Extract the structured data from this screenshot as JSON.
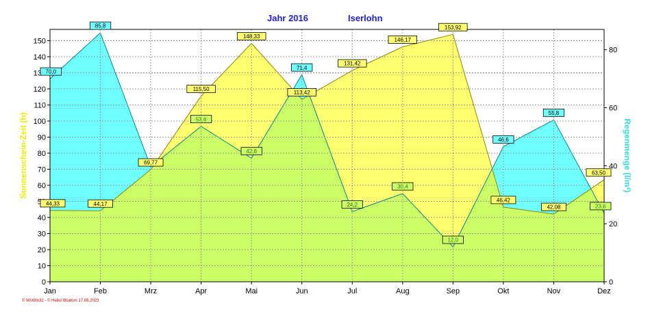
{
  "header": {
    "year": "Jahr  2016",
    "place": "Iserlohn"
  },
  "footer": {
    "credit": "© WsWin32  -  © Heiko Blüdorn  17.06.2023"
  },
  "colors": {
    "sun_fill": "#ffff70",
    "sun_line": "#8a8a00",
    "sun_label": "#eeee00",
    "rain_fill": "#70ffff",
    "rain_line": "#008a8a",
    "rain_label": "#33dddd",
    "overlap_fill": "#ccff66",
    "overlap_label": "#77cc33",
    "overlap_label_text": "#2a7a1a",
    "grid": "#9a9a9a",
    "axis": "#000000"
  },
  "chart_data": {
    "type": "area",
    "categories": [
      "Jan",
      "Feb",
      "Mrz",
      "Apr",
      "Mai",
      "Jun",
      "Jul",
      "Aug",
      "Sep",
      "Okt",
      "Nov",
      "Dez"
    ],
    "left_axis": {
      "label": "Sonnenschein-Zeit  (h)",
      "ylim": [
        0,
        157
      ],
      "ticks": [
        0,
        10,
        20,
        30,
        40,
        50,
        60,
        70,
        80,
        90,
        100,
        110,
        120,
        130,
        140,
        150
      ]
    },
    "right_axis": {
      "label": "Regenmenge  (l/m²)",
      "ylim": [
        0,
        87
      ],
      "ticks": [
        0,
        20,
        40,
        60,
        80
      ]
    },
    "grid": true,
    "series": [
      {
        "name": "Sonnenschein-Zeit",
        "axis": "left",
        "values": [
          44.33,
          44.17,
          69.77,
          115.5,
          148.33,
          113.42,
          131.42,
          146.17,
          153.92,
          46.42,
          42.08,
          63.5
        ],
        "labels": [
          "44,33",
          "44,17",
          "69,77",
          "115,50",
          "148,33",
          "113,42",
          "131,42",
          "146,17",
          "153,92",
          "46,42",
          "42,08",
          "63,50"
        ]
      },
      {
        "name": "Regenmenge",
        "axis": "right",
        "values": [
          70.0,
          85.8,
          39.6,
          53.6,
          42.6,
          71.4,
          24.2,
          30.4,
          12.0,
          46.6,
          55.8,
          23.6
        ],
        "labels": [
          "70,0",
          "85,8",
          "",
          "53,6",
          "42,6",
          "71,4",
          "24,2",
          "30,4",
          "12,0",
          "46,6",
          "55,8",
          "23,6"
        ]
      }
    ]
  }
}
